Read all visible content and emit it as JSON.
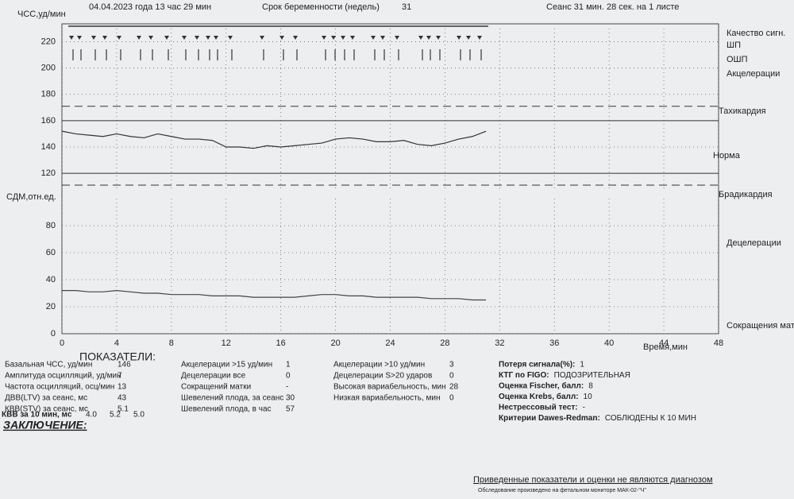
{
  "header": {
    "date": "04.04.2023 года 13 час 29 мин",
    "term_label": "Срок беременности (недель)",
    "term": "31",
    "session": "Сеанс 31 мин. 28 сек. на 1 листе"
  },
  "chart_data": [
    {
      "type": "line",
      "y_label": "ЧСС,уд/мин",
      "ylim": [
        108,
        230
      ],
      "yticks": [
        120,
        140,
        160,
        180,
        200,
        220
      ],
      "xlim": [
        0,
        48
      ],
      "xticks": [
        0,
        4,
        8,
        12,
        16,
        20,
        24,
        28,
        32,
        36,
        40,
        44,
        48
      ],
      "norm_band": [
        120,
        160
      ],
      "tachy_line": 171,
      "brady_line": 111,
      "series": [
        {
          "color": "#333333",
          "x": [
            0,
            1,
            2,
            3,
            4,
            5,
            6,
            7,
            8,
            9,
            10,
            11,
            12,
            13,
            14,
            15,
            16,
            17,
            18,
            19,
            20,
            21,
            22,
            23,
            24,
            25,
            26,
            27,
            28,
            29,
            30,
            31
          ],
          "values": [
            152,
            150,
            149,
            148,
            150,
            148,
            147,
            150,
            148,
            146,
            146,
            145,
            140,
            140,
            139,
            141,
            140,
            141,
            142,
            143,
            146,
            147,
            146,
            144,
            144,
            145,
            142,
            141,
            143,
            146,
            148,
            152
          ]
        }
      ]
    },
    {
      "type": "line",
      "y_label": "СДМ,отн.ед.",
      "x_label": "Время,мин",
      "ylim": [
        0,
        100
      ],
      "yticks": [
        0,
        20,
        40,
        60,
        80
      ],
      "xlim": [
        0,
        48
      ],
      "xticks": [
        0,
        4,
        8,
        12,
        16,
        20,
        24,
        28,
        32,
        36,
        40,
        44,
        48
      ],
      "series": [
        {
          "color": "#444444",
          "x": [
            0,
            1,
            2,
            3,
            4,
            5,
            6,
            7,
            8,
            9,
            10,
            11,
            12,
            13,
            14,
            15,
            16,
            17,
            18,
            19,
            20,
            21,
            22,
            23,
            24,
            25,
            26,
            27,
            28,
            29,
            30,
            31
          ],
          "values": [
            32,
            32,
            31,
            31,
            32,
            31,
            30,
            30,
            29,
            29,
            29,
            28,
            28,
            28,
            27,
            27,
            27,
            27,
            28,
            29,
            29,
            28,
            28,
            27,
            27,
            27,
            27,
            26,
            26,
            26,
            25,
            25
          ]
        }
      ]
    }
  ],
  "legend": {
    "quality": "Качество сигн.",
    "shp": "ШП",
    "oshp": "ОШП",
    "accel": "Акцелерации",
    "tachy": "Тахикардия",
    "norm": "Норма",
    "brady": "Брадикардия",
    "decel": "Децелерации",
    "contr": "Сокращения матки"
  },
  "indicators": {
    "title": "ПОКАЗАТЕЛИ:",
    "col1": [
      [
        "Базальная ЧСС, уд/мин",
        "146"
      ],
      [
        "Амплитуда осцилляций, уд/мин",
        "7"
      ],
      [
        "Частота осцилляций, осц/мин",
        "13"
      ],
      [
        "ДВВ(LTV) за сеанс, мс",
        "43"
      ],
      [
        "КВВ(STV) за сеанс, мс",
        "5.1"
      ]
    ],
    "stv10_label": "КВВ за 10 мин, мс",
    "stv10": [
      "4.0",
      "5.2",
      "5.0"
    ],
    "col2": [
      [
        "Акцелерации >15 уд/мин",
        "1"
      ],
      [
        "Децелерации все",
        "0"
      ],
      [
        "Сокращений матки",
        "-"
      ],
      [
        "Шевелений плода, за сеанс",
        "30"
      ],
      [
        "Шевелений плода, в час",
        "57"
      ]
    ],
    "col3": [
      [
        "Акцелерации >10 уд/мин",
        "3"
      ],
      [
        "Децелерации S>20 ударов",
        "0"
      ],
      [
        "Высокая вариабельность, мин",
        "28"
      ],
      [
        "Низкая вариабельность, мин",
        "0"
      ]
    ],
    "col4": [
      [
        "Потеря сигнала(%):",
        "1"
      ],
      [
        "КТГ по FIGO:",
        "ПОДОЗРИТЕЛЬНАЯ"
      ],
      [
        "Оценка Fischer, балл:",
        "8"
      ],
      [
        "Оценка Krebs, балл:",
        "10"
      ],
      [
        "Нестрессовый тест:",
        "-"
      ],
      [
        "Критерии Dawes-Redman:",
        "СОБЛЮДЕНЫ К 10 МИН"
      ]
    ]
  },
  "footer": {
    "conclusion": "ЗАКЛЮЧЕНИЕ:",
    "disclaimer": "Приведенные показатели и оценки не являются диагнозом",
    "device": "Обследование произведено на фетальном мониторе МАК-02-\"Ч\""
  }
}
